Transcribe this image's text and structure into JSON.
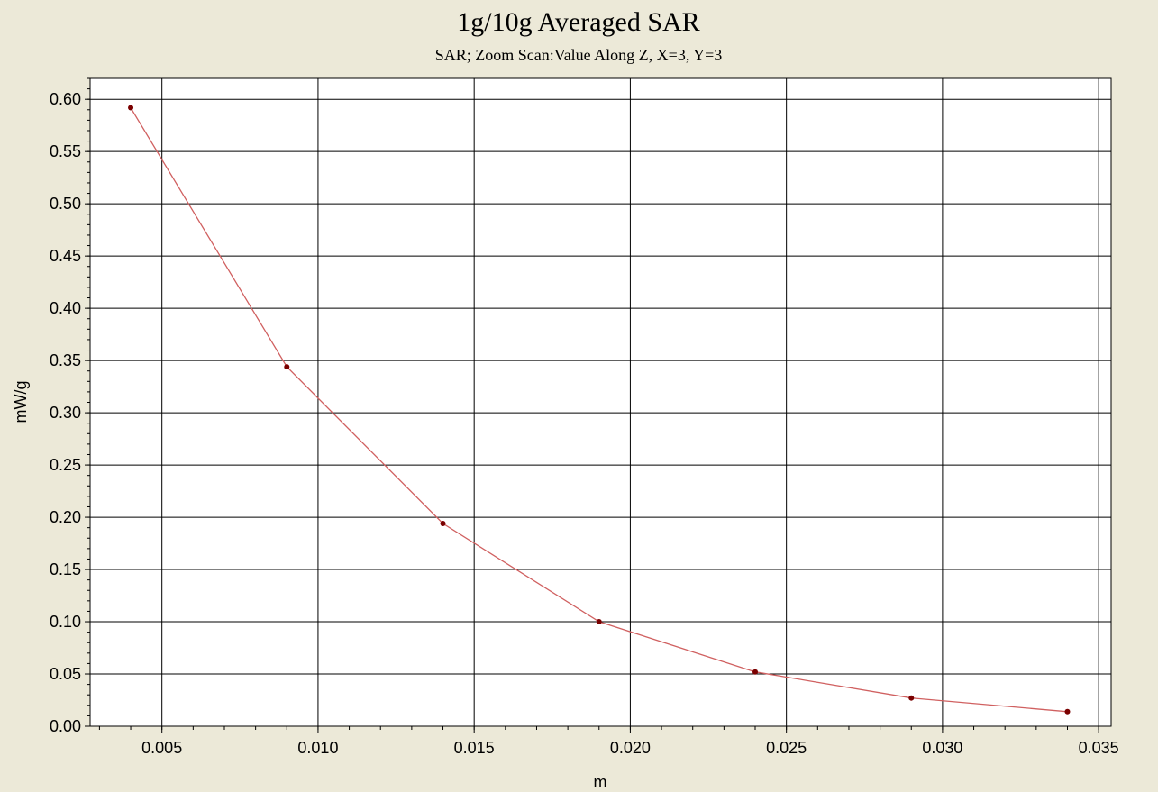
{
  "chart_data": {
    "type": "line",
    "title": "1g/10g Averaged SAR",
    "subtitle": "SAR; Zoom Scan:Value Along Z, X=3, Y=3",
    "xlabel": "m",
    "ylabel": "mW/g",
    "xlim": [
      0.0027,
      0.0354
    ],
    "ylim": [
      0.0,
      0.62
    ],
    "x_ticks": [
      "0.005",
      "0.010",
      "0.015",
      "0.020",
      "0.025",
      "0.030",
      "0.035"
    ],
    "y_ticks": [
      "0.00",
      "0.05",
      "0.10",
      "0.15",
      "0.20",
      "0.25",
      "0.30",
      "0.35",
      "0.40",
      "0.45",
      "0.50",
      "0.55",
      "0.60"
    ],
    "grid": true,
    "series": [
      {
        "x": [
          0.004,
          0.009,
          0.014,
          0.019,
          0.024,
          0.029,
          0.034
        ],
        "y": [
          0.592,
          0.344,
          0.194,
          0.1,
          0.052,
          0.027,
          0.014
        ],
        "line_color": "#d06060",
        "marker_color": "#7a0000"
      }
    ]
  }
}
